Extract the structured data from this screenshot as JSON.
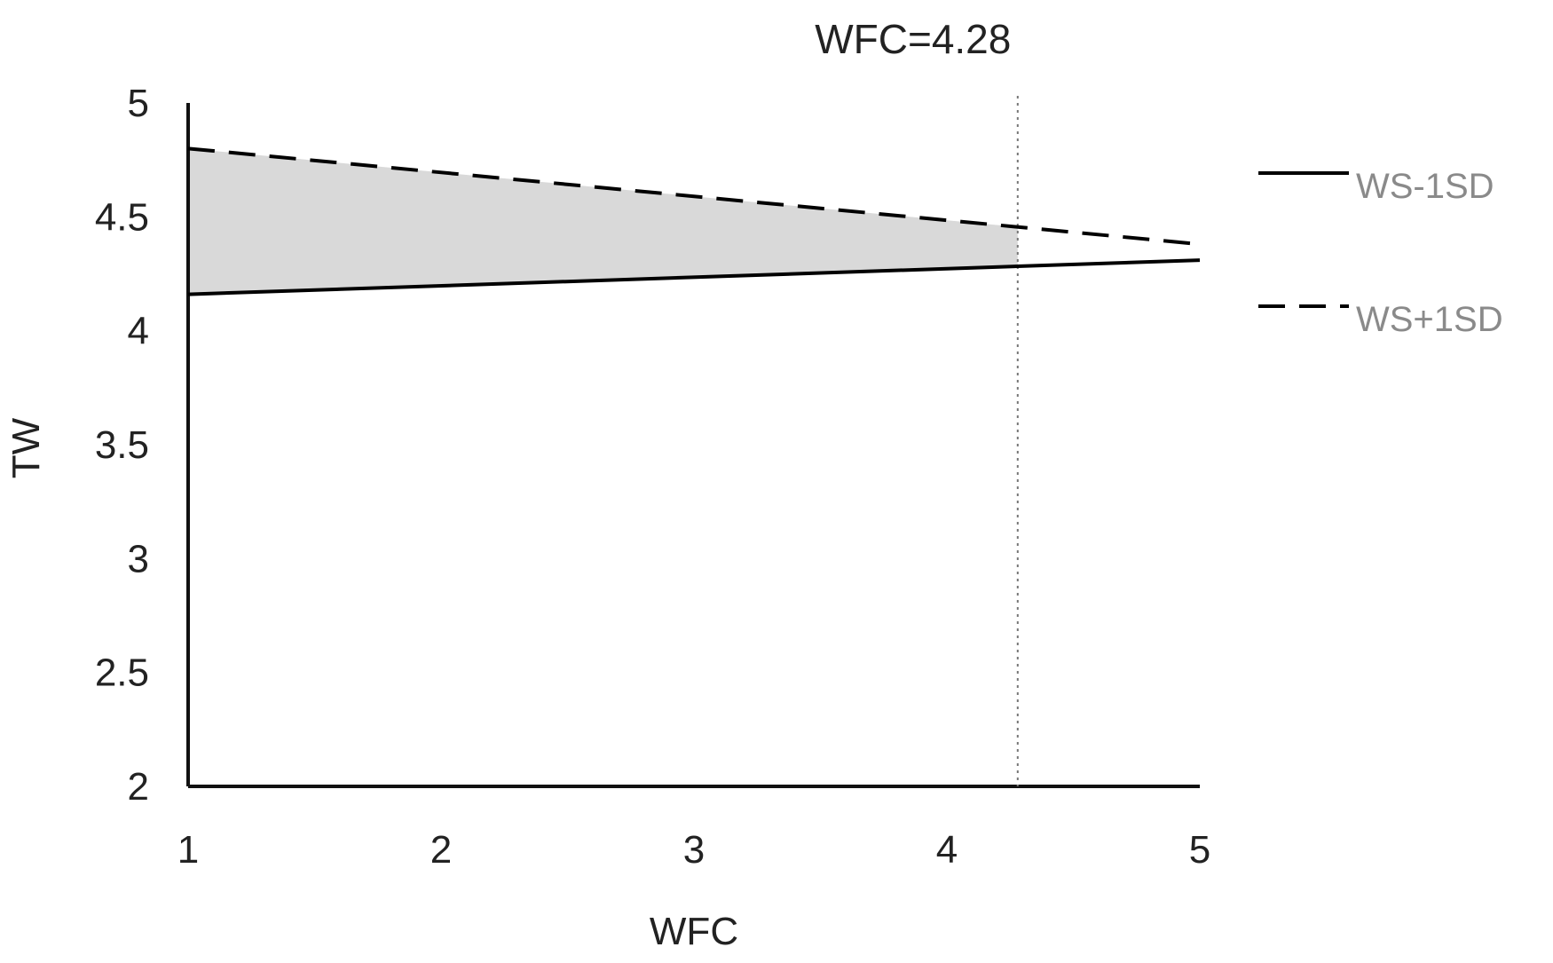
{
  "chart_data": {
    "type": "line",
    "title": "",
    "xlabel": "WFC",
    "ylabel": "TW",
    "xlim": [
      1,
      5
    ],
    "ylim": [
      2,
      5
    ],
    "x_ticks": [
      "1",
      "2",
      "3",
      "4",
      "5"
    ],
    "y_ticks": [
      "2",
      "2.5",
      "3",
      "3.5",
      "4",
      "4.5",
      "5"
    ],
    "x": [
      1,
      5
    ],
    "series": [
      {
        "name": "WS-1SD",
        "values": [
          4.16,
          4.31
        ],
        "line_style": "solid",
        "color": "#000000"
      },
      {
        "name": "WS+1SD",
        "values": [
          4.8,
          4.38
        ],
        "line_style": "dashed",
        "color": "#000000"
      }
    ],
    "shaded_region": {
      "x_from": 1,
      "x_to": 4.28,
      "color": "#d9d9d9"
    },
    "annotation": {
      "label": "WFC=4.28",
      "x": 4.28,
      "line_style": "dotted"
    },
    "legend_position": "right",
    "grid": false
  }
}
